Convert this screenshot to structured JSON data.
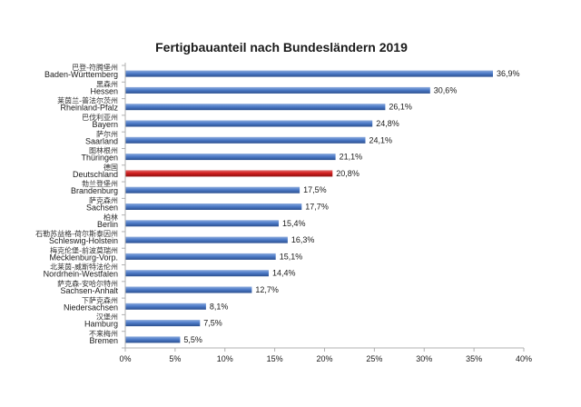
{
  "chart_data": {
    "type": "bar",
    "orientation": "horizontal",
    "title": "Fertigbauanteil nach Bundesländern 2019",
    "categories": [
      {
        "zh": "巴登-符腾堡州",
        "de": "Baden-Württemberg"
      },
      {
        "zh": "黑森州",
        "de": "Hessen"
      },
      {
        "zh": "莱茵兰-普法尔茨州",
        "de": "Rheinland-Pfalz"
      },
      {
        "zh": "巴伐利亚州",
        "de": "Bayern"
      },
      {
        "zh": "萨尔州",
        "de": "Saarland"
      },
      {
        "zh": "图林根州",
        "de": "Thüringen"
      },
      {
        "zh": "德国",
        "de": "Deutschland"
      },
      {
        "zh": "勃兰登堡州",
        "de": "Brandenburg"
      },
      {
        "zh": "萨克森州",
        "de": "Sachsen"
      },
      {
        "zh": "柏林",
        "de": "Berlin"
      },
      {
        "zh": "石勒苏益格-荷尔斯泰因州",
        "de": "Schleswig-Holstein"
      },
      {
        "zh": "梅克伦堡-前波莫瑞州",
        "de": "Mecklenburg-Vorp."
      },
      {
        "zh": "北莱茵-威斯特法伦州",
        "de": "Nordrhein-Westfalen"
      },
      {
        "zh": "萨克森-安哈尔特州",
        "de": "Sachsen-Anhalt"
      },
      {
        "zh": "下萨克森州",
        "de": "Niedersachsen"
      },
      {
        "zh": "汉堡州",
        "de": "Hamburg"
      },
      {
        "zh": "不来梅州",
        "de": "Bremen"
      }
    ],
    "values": [
      36.9,
      30.6,
      26.1,
      24.8,
      24.1,
      21.1,
      20.8,
      17.5,
      17.7,
      15.4,
      16.3,
      15.1,
      14.4,
      12.7,
      8.1,
      7.5,
      5.5
    ],
    "value_labels": [
      "36,9%",
      "30,6%",
      "26,1%",
      "24,8%",
      "24,1%",
      "21,1%",
      "20,8%",
      "17,5%",
      "17,7%",
      "15,4%",
      "16,3%",
      "15,1%",
      "14,4%",
      "12,7%",
      "8,1%",
      "7,5%",
      "5,5%"
    ],
    "highlight_index": 6,
    "xlim": [
      0,
      40
    ],
    "xticks": [
      0,
      5,
      10,
      15,
      20,
      25,
      30,
      35,
      40
    ],
    "xtick_labels": [
      "0%",
      "5%",
      "10%",
      "15%",
      "20%",
      "25%",
      "30%",
      "35%",
      "40%"
    ],
    "grid": false,
    "legend": "none",
    "colors": {
      "bar": "#4e7cc9",
      "bar_dark": "#2b4f8f",
      "highlight": "#d21f1f",
      "highlight_dark": "#8f1010",
      "axis": "#b0b0b0"
    }
  }
}
